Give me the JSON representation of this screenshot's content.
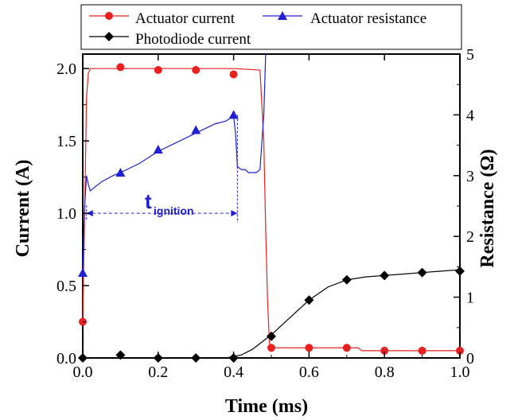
{
  "chart_data": {
    "type": "line",
    "title": "",
    "xlabel": "Time (ms)",
    "ylabel": "Current (A)",
    "y2label": "Resistance (Ω)",
    "xlim": [
      0,
      1.0
    ],
    "ylim": [
      0,
      2.1
    ],
    "y2lim": [
      0,
      5
    ],
    "x_ticks": [
      "0.0",
      "0.2",
      "0.4",
      "0.6",
      "0.8",
      "1.0"
    ],
    "y_ticks": [
      "0.0",
      "0.5",
      "1.0",
      "1.5",
      "2.0"
    ],
    "y2_ticks": [
      "0",
      "1",
      "2",
      "3",
      "4",
      "5"
    ],
    "grid": false,
    "legend_position": "top",
    "annotation": {
      "text": "t",
      "subscript": "ignition",
      "x_start": 0.01,
      "x_end": 0.41,
      "y": 1.0,
      "color": "#2020d0"
    },
    "series": [
      {
        "name": "Actuator current",
        "axis": "left",
        "color": "#e82020",
        "marker": "circle",
        "x": [
          0.0,
          0.005,
          0.01,
          0.015,
          0.02,
          0.05,
          0.1,
          0.2,
          0.3,
          0.4,
          0.47,
          0.48,
          0.485,
          0.49,
          0.495,
          0.5,
          0.6,
          0.7,
          0.73,
          0.74,
          0.8,
          0.9,
          1.0
        ],
        "y": [
          0.25,
          1.0,
          1.8,
          1.97,
          2.0,
          2.0,
          2.0,
          2.0,
          2.0,
          2.0,
          1.99,
          1.5,
          0.9,
          0.4,
          0.1,
          0.07,
          0.07,
          0.07,
          0.07,
          0.05,
          0.05,
          0.05,
          0.05
        ],
        "marker_points": [
          [
            0.0,
            0.25
          ],
          [
            0.1,
            2.01
          ],
          [
            0.2,
            1.99
          ],
          [
            0.3,
            1.99
          ],
          [
            0.4,
            1.96
          ],
          [
            0.5,
            0.07
          ],
          [
            0.6,
            0.07
          ],
          [
            0.7,
            0.07
          ],
          [
            0.8,
            0.05
          ],
          [
            0.9,
            0.05
          ],
          [
            1.0,
            0.05
          ]
        ]
      },
      {
        "name": "Actuator resistance",
        "axis": "right",
        "color": "#2020d0",
        "marker": "triangle",
        "x": [
          0.0,
          0.005,
          0.01,
          0.015,
          0.02,
          0.03,
          0.05,
          0.08,
          0.1,
          0.15,
          0.2,
          0.25,
          0.3,
          0.35,
          0.38,
          0.4,
          0.405,
          0.41,
          0.42,
          0.43,
          0.44,
          0.45,
          0.46,
          0.47,
          0.48,
          0.485
        ],
        "y": [
          1.4,
          2.5,
          3.0,
          2.85,
          2.75,
          2.8,
          2.9,
          3.0,
          3.05,
          3.2,
          3.4,
          3.55,
          3.7,
          3.85,
          3.9,
          3.98,
          3.7,
          3.15,
          3.1,
          3.1,
          3.05,
          3.05,
          3.05,
          3.1,
          4.0,
          5.0
        ],
        "marker_points": [
          [
            0.0,
            1.4
          ],
          [
            0.1,
            3.05
          ],
          [
            0.2,
            3.43
          ],
          [
            0.3,
            3.75
          ],
          [
            0.4,
            4.0
          ]
        ]
      },
      {
        "name": "Photodiode current",
        "axis": "left",
        "color": "#000000",
        "marker": "diamond",
        "x": [
          0.0,
          0.1,
          0.2,
          0.3,
          0.38,
          0.42,
          0.45,
          0.5,
          0.55,
          0.6,
          0.65,
          0.7,
          0.75,
          0.8,
          0.85,
          0.9,
          0.95,
          1.0
        ],
        "y": [
          0.0,
          0.0,
          0.0,
          0.0,
          0.0,
          0.02,
          0.06,
          0.16,
          0.28,
          0.4,
          0.49,
          0.54,
          0.56,
          0.57,
          0.58,
          0.59,
          0.6,
          0.61
        ],
        "marker_points": [
          [
            0.0,
            0.0
          ],
          [
            0.1,
            0.02
          ],
          [
            0.2,
            0.0
          ],
          [
            0.3,
            0.0
          ],
          [
            0.4,
            0.0
          ],
          [
            0.5,
            0.15
          ],
          [
            0.6,
            0.4
          ],
          [
            0.7,
            0.54
          ],
          [
            0.8,
            0.57
          ],
          [
            0.9,
            0.59
          ],
          [
            1.0,
            0.6
          ]
        ]
      }
    ]
  }
}
